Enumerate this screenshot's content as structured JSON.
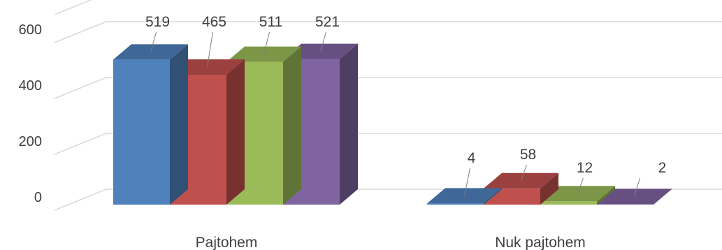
{
  "chart_data": {
    "type": "bar",
    "categories": [
      "Pajtohem",
      "Nuk pajtohem"
    ],
    "series": [
      {
        "values": [
          519,
          4
        ],
        "color": "#4F81BD"
      },
      {
        "values": [
          465,
          58
        ],
        "color": "#C0504D"
      },
      {
        "values": [
          511,
          12
        ],
        "color": "#9BBB59"
      },
      {
        "values": [
          521,
          2
        ],
        "color": "#8064A2"
      }
    ],
    "y_ticks": [
      0,
      200,
      400,
      600
    ],
    "ylim": [
      0,
      700
    ],
    "grid": true,
    "legend": "none",
    "title": "",
    "xlabel": "",
    "ylabel": ""
  }
}
